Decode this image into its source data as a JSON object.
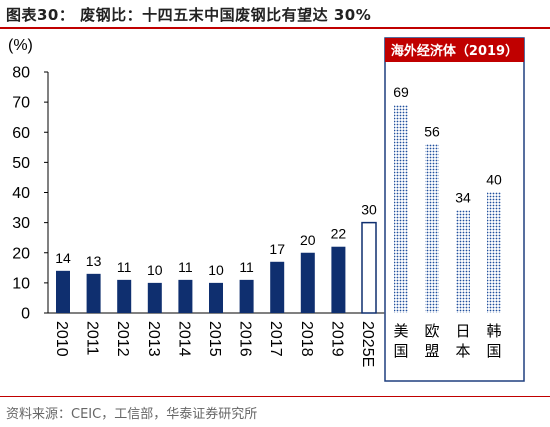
{
  "title": "图表30：  废钢比：十四五末中国废钢比有望达 30%",
  "source": "资料来源：CEIC，工信部，华泰证券研究所",
  "colors": {
    "bar": "#0f2f6f",
    "accent": "#c00000",
    "dotted": "#1f4e9e"
  },
  "chart_data": {
    "type": "bar",
    "y_unit_label": "(%)",
    "ylim": [
      0,
      80
    ],
    "yticks": [
      0,
      10,
      20,
      30,
      40,
      50,
      60,
      70,
      80
    ],
    "categories": [
      "2010",
      "2011",
      "2012",
      "2013",
      "2014",
      "2015",
      "2016",
      "2017",
      "2018",
      "2019",
      "2025E"
    ],
    "values": [
      14,
      13,
      11,
      10,
      11,
      10,
      11,
      17,
      20,
      22,
      30
    ],
    "styles": [
      "solid",
      "solid",
      "solid",
      "solid",
      "solid",
      "solid",
      "solid",
      "solid",
      "solid",
      "solid",
      "outline"
    ],
    "inset": {
      "title": "海外经济体（2019）",
      "categories": [
        [
          "美",
          "国"
        ],
        [
          "欧",
          "盟"
        ],
        [
          "日",
          "本"
        ],
        [
          "韩",
          "国"
        ]
      ],
      "values": [
        69,
        56,
        34,
        40
      ]
    }
  }
}
